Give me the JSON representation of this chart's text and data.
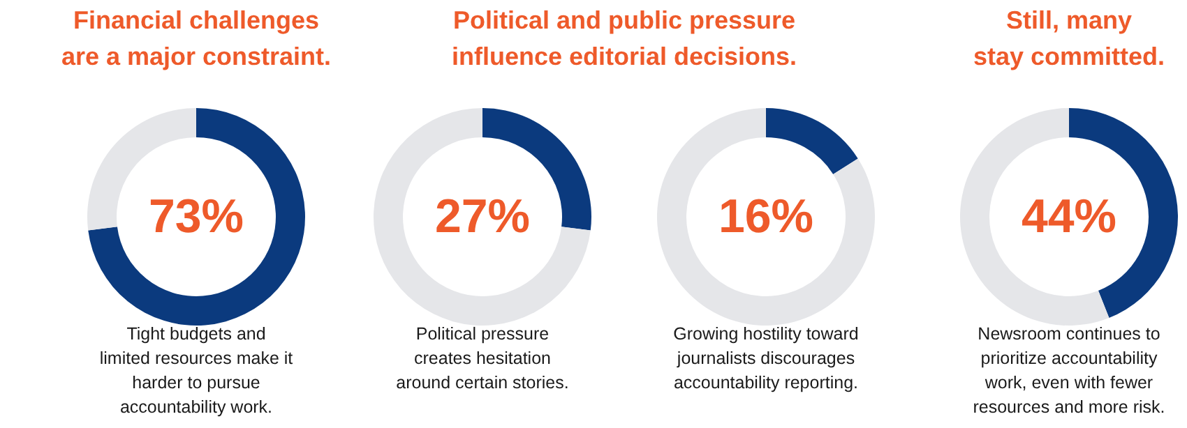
{
  "chart_data": [
    {
      "type": "donut",
      "title": "Financial challenges\nare a major constraint.",
      "categories": [
        null,
        null
      ],
      "values": [
        73,
        27
      ],
      "colors": [
        "#0b3a7e",
        "#e5e6e9"
      ],
      "value_labels": [
        "73%",
        null
      ],
      "annotations": [
        "Tight budgets and\nlimited resources make it\nharder to pursue\naccountability work."
      ]
    },
    {
      "type": "donut",
      "title": "Political and public pressure\ninfluence editorial decisions.",
      "categories": [
        null,
        null
      ],
      "values": [
        27,
        73
      ],
      "colors": [
        "#0b3a7e",
        "#e5e6e9"
      ],
      "value_labels": [
        "27%",
        null
      ],
      "annotations": [
        "Political pressure\ncreates hesitation\naround certain stories."
      ]
    },
    {
      "type": "donut",
      "categories": [
        null,
        null
      ],
      "values": [
        16,
        84
      ],
      "colors": [
        "#0b3a7e",
        "#e5e6e9"
      ],
      "value_labels": [
        "16%",
        null
      ],
      "annotations": [
        "Growing hostility toward\njournalists discourages\naccountability reporting."
      ]
    },
    {
      "type": "donut",
      "title": "Still, many\nstay committed.",
      "categories": [
        null,
        null
      ],
      "values": [
        44,
        56
      ],
      "colors": [
        "#0b3a7e",
        "#e5e6e9"
      ],
      "value_labels": [
        "44%",
        null
      ],
      "annotations": [
        "Newsroom continues to\nprioritize accountability\nwork, even with fewer\nresources and more risk."
      ]
    }
  ]
}
